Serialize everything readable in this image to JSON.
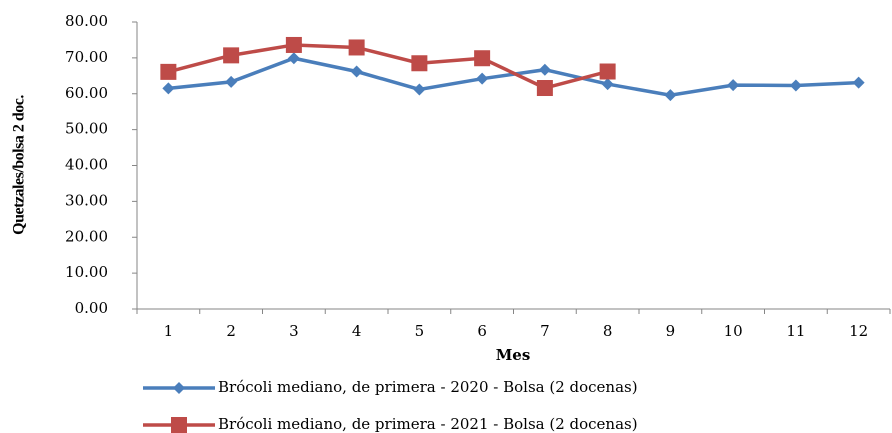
{
  "chart_data": {
    "type": "line",
    "y_label": "Quetzales/bolsa 2 doc.",
    "x_label": "Mes",
    "categories": [
      "1",
      "2",
      "3",
      "4",
      "5",
      "6",
      "7",
      "8",
      "9",
      "10",
      "11",
      "12"
    ],
    "series": [
      {
        "name": "Brócoli mediano, de primera - 2020 - Bolsa (2 docenas)",
        "color": "#4a7ebb",
        "marker": "diamond",
        "values": [
          61.5,
          63.3,
          69.9,
          66.2,
          61.2,
          64.2,
          66.7,
          62.7,
          59.6,
          62.4,
          62.3,
          63.1
        ]
      },
      {
        "name": "Brócoli mediano, de primera - 2021 - Bolsa (2 docenas)",
        "color": "#be4b48",
        "marker": "square",
        "values": [
          66.1,
          70.7,
          73.6,
          72.9,
          68.5,
          69.9,
          61.6,
          66.2,
          null,
          null,
          null,
          null
        ]
      }
    ],
    "ylim": [
      0,
      80
    ],
    "yticks": [
      {
        "value": 0,
        "label": "0.00"
      },
      {
        "value": 10,
        "label": "10.00"
      },
      {
        "value": 20,
        "label": "20.00"
      },
      {
        "value": 30,
        "label": "30.00"
      },
      {
        "value": 40,
        "label": "40.00"
      },
      {
        "value": 50,
        "label": "50.00"
      },
      {
        "value": 60,
        "label": "60.00"
      },
      {
        "value": 70,
        "label": "70.00"
      },
      {
        "value": 80,
        "label": "80.00"
      }
    ],
    "grid": false
  }
}
